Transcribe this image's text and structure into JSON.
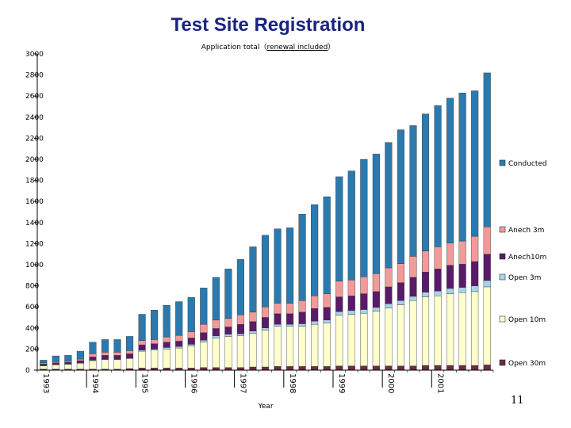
{
  "title": "Test Site Registration",
  "subtitle_prefix": "Application total（",
  "subtitle_underlined": "renewal included",
  "subtitle_suffix": "）",
  "page_number": "11",
  "chart_data": {
    "type": "bar",
    "stacked": true,
    "title": "Test Site Registration",
    "subtitle": "Application total（renewal included）",
    "xlabel": "Year",
    "ylabel": "",
    "ylim": [
      0,
      3000
    ],
    "y_ticks": [
      0,
      200,
      400,
      600,
      800,
      1000,
      1200,
      1400,
      1600,
      1800,
      2000,
      2200,
      2400,
      2600,
      2800,
      3000
    ],
    "y_tick_labels": [
      "0",
      "200",
      "400",
      "600",
      "800",
      "1000",
      "1200",
      "1400",
      "1600",
      "1800",
      "2000",
      "2200",
      "2400",
      "2600",
      "2800",
      "3000"
    ],
    "year_labels": [
      "1993",
      "1994",
      "1995",
      "1996",
      "1997",
      "1998",
      "1999",
      "2000",
      "2001"
    ],
    "year_start_index": [
      0,
      4,
      8,
      12,
      16,
      20,
      24,
      28,
      32
    ],
    "legend_position": "right",
    "grid": false,
    "categories": [
      "1993 P1",
      "1993 P2",
      "1993 P3",
      "1993 P4",
      "1994 P1",
      "1994 P2",
      "1994 P3",
      "1994 P4",
      "1995 P1",
      "1995 P2",
      "1995 P3",
      "1995 P4",
      "1996 P1",
      "1996 P2",
      "1996 P3",
      "1996 P4",
      "1997 P1",
      "1997 P2",
      "1997 P3",
      "1997 P4",
      "1998 P1",
      "1998 P2",
      "1998 P3",
      "1998 P4",
      "1999 P1",
      "1999 P2",
      "1999 P3",
      "1999 P4",
      "2000 P1",
      "2000 P2",
      "2000 P3",
      "2000 P4",
      "2001 P1",
      "2001 P2",
      "2001 P3",
      "2001 P4",
      "2002 P1"
    ],
    "series": [
      {
        "name": "Open  30m",
        "color": "#6b2a4a",
        "values": [
          10,
          10,
          10,
          10,
          10,
          10,
          10,
          15,
          20,
          20,
          20,
          20,
          20,
          25,
          25,
          25,
          25,
          30,
          30,
          35,
          35,
          35,
          35,
          35,
          40,
          40,
          40,
          40,
          40,
          40,
          40,
          45,
          45,
          45,
          45,
          45,
          50
        ]
      },
      {
        "name": "Open  10m",
        "color": "#ffffcc",
        "values": [
          30,
          40,
          45,
          55,
          80,
          90,
          90,
          95,
          160,
          170,
          180,
          190,
          210,
          240,
          280,
          295,
          300,
          320,
          350,
          380,
          380,
          380,
          400,
          410,
          480,
          490,
          500,
          520,
          550,
          580,
          620,
          650,
          660,
          680,
          690,
          700,
          740
        ]
      },
      {
        "name": "Open    3m",
        "color": "#a6d4ec",
        "values": [
          5,
          5,
          5,
          5,
          5,
          5,
          5,
          5,
          10,
          10,
          15,
          15,
          15,
          20,
          20,
          20,
          20,
          20,
          20,
          20,
          20,
          25,
          30,
          30,
          35,
          35,
          35,
          35,
          40,
          40,
          40,
          45,
          45,
          50,
          50,
          55,
          60
        ]
      },
      {
        "name": "Anech10m",
        "color": "#5a1a6a",
        "values": [
          15,
          15,
          15,
          20,
          30,
          35,
          35,
          40,
          50,
          50,
          50,
          50,
          60,
          70,
          70,
          70,
          90,
          90,
          100,
          100,
          100,
          110,
          120,
          120,
          140,
          140,
          150,
          150,
          160,
          170,
          180,
          190,
          210,
          220,
          220,
          230,
          250
        ]
      },
      {
        "name": "Anech  3m",
        "color": "#f29a9a",
        "values": [
          10,
          10,
          10,
          15,
          30,
          30,
          30,
          30,
          40,
          40,
          50,
          55,
          60,
          80,
          80,
          80,
          90,
          90,
          100,
          100,
          100,
          110,
          120,
          130,
          150,
          150,
          160,
          170,
          180,
          180,
          200,
          200,
          210,
          210,
          220,
          240,
          260
        ]
      },
      {
        "name": "Conducted",
        "color": "#2a7ab0",
        "values": [
          25,
          55,
          55,
          75,
          110,
          120,
          120,
          135,
          250,
          280,
          300,
          320,
          325,
          345,
          405,
          470,
          525,
          620,
          680,
          705,
          715,
          820,
          865,
          920,
          990,
          1035,
          1115,
          1135,
          1190,
          1270,
          1240,
          1300,
          1340,
          1375,
          1405,
          1380,
          1460
        ]
      }
    ]
  },
  "colors": {
    "title": "#1a237e",
    "axis": "#000000"
  }
}
